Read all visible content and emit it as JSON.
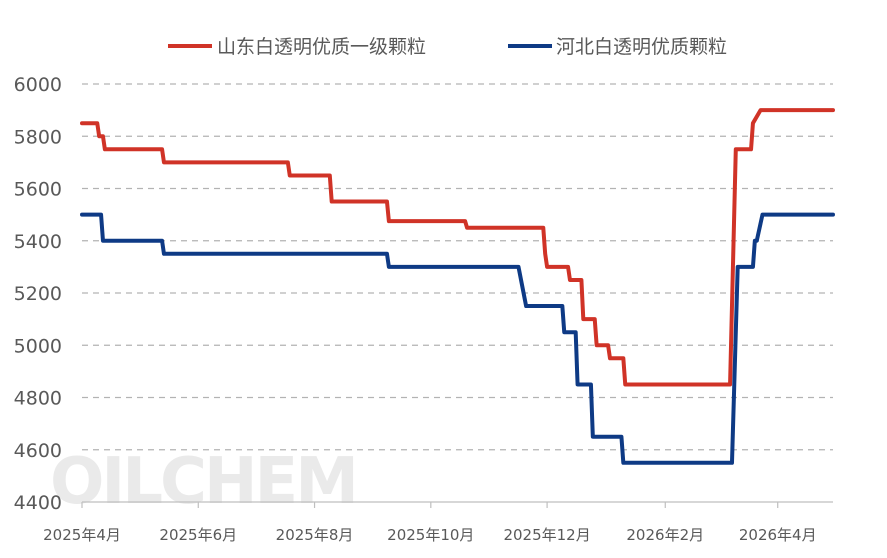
{
  "chart_data": {
    "type": "line",
    "title": "",
    "xlabel": "",
    "ylabel": "",
    "ylim": [
      4400,
      6000
    ],
    "yticks": [
      4400,
      4600,
      4800,
      5000,
      5200,
      5400,
      5600,
      5800,
      6000
    ],
    "xlim": [
      "2025-04-01",
      "2026-04-30"
    ],
    "xticks": [
      {
        "date": "2025-04-01",
        "label": "2025年4月"
      },
      {
        "date": "2025-06-01",
        "label": "2025年6月"
      },
      {
        "date": "2025-08-01",
        "label": "2025年8月"
      },
      {
        "date": "2025-10-01",
        "label": "2025年10月"
      },
      {
        "date": "2025-12-01",
        "label": "2025年12月"
      },
      {
        "date": "2026-02-01",
        "label": "2026年2月"
      },
      {
        "date": "2026-04-01",
        "label": "2026年4月"
      }
    ],
    "grid": "horizontal dashed",
    "legend": "top",
    "watermark": "OILCHEM",
    "series": [
      {
        "name": "山东白透明优质一级颗粒",
        "color": "#d03327",
        "points": [
          [
            "2025-04-01",
            5850
          ],
          [
            "2025-04-09",
            5850
          ],
          [
            "2025-04-10",
            5800
          ],
          [
            "2025-04-12",
            5800
          ],
          [
            "2025-04-13",
            5750
          ],
          [
            "2025-05-13",
            5750
          ],
          [
            "2025-05-14",
            5700
          ],
          [
            "2025-07-18",
            5700
          ],
          [
            "2025-07-19",
            5650
          ],
          [
            "2025-08-09",
            5650
          ],
          [
            "2025-08-10",
            5550
          ],
          [
            "2025-09-08",
            5550
          ],
          [
            "2025-09-09",
            5475
          ],
          [
            "2025-10-19",
            5475
          ],
          [
            "2025-10-20",
            5450
          ],
          [
            "2025-11-29",
            5450
          ],
          [
            "2025-11-30",
            5350
          ],
          [
            "2025-12-01",
            5300
          ],
          [
            "2025-12-12",
            5300
          ],
          [
            "2025-12-13",
            5250
          ],
          [
            "2025-12-19",
            5250
          ],
          [
            "2025-12-20",
            5100
          ],
          [
            "2025-12-26",
            5100
          ],
          [
            "2025-12-27",
            5000
          ],
          [
            "2026-01-02",
            5000
          ],
          [
            "2026-01-03",
            4950
          ],
          [
            "2026-01-10",
            4950
          ],
          [
            "2026-01-11",
            4850
          ],
          [
            "2026-03-07",
            4850
          ],
          [
            "2026-03-10",
            5750
          ],
          [
            "2026-03-18",
            5750
          ],
          [
            "2026-03-19",
            5850
          ],
          [
            "2026-03-21",
            5875
          ],
          [
            "2026-03-23",
            5900
          ],
          [
            "2026-04-30",
            5900
          ]
        ]
      },
      {
        "name": "河北白透明优质颗粒",
        "color": "#0e3a85",
        "points": [
          [
            "2025-04-01",
            5500
          ],
          [
            "2025-04-11",
            5500
          ],
          [
            "2025-04-12",
            5400
          ],
          [
            "2025-05-13",
            5400
          ],
          [
            "2025-05-14",
            5350
          ],
          [
            "2025-09-08",
            5350
          ],
          [
            "2025-09-09",
            5300
          ],
          [
            "2025-11-16",
            5300
          ],
          [
            "2025-11-20",
            5150
          ],
          [
            "2025-12-09",
            5150
          ],
          [
            "2025-12-10",
            5050
          ],
          [
            "2025-12-16",
            5050
          ],
          [
            "2025-12-17",
            4850
          ],
          [
            "2025-12-24",
            4850
          ],
          [
            "2025-12-25",
            4650
          ],
          [
            "2026-01-09",
            4650
          ],
          [
            "2026-01-10",
            4550
          ],
          [
            "2026-03-08",
            4550
          ],
          [
            "2026-03-11",
            5300
          ],
          [
            "2026-03-19",
            5300
          ],
          [
            "2026-03-20",
            5400
          ],
          [
            "2026-03-21",
            5400
          ],
          [
            "2026-03-24",
            5500
          ],
          [
            "2026-04-30",
            5500
          ]
        ]
      }
    ]
  }
}
